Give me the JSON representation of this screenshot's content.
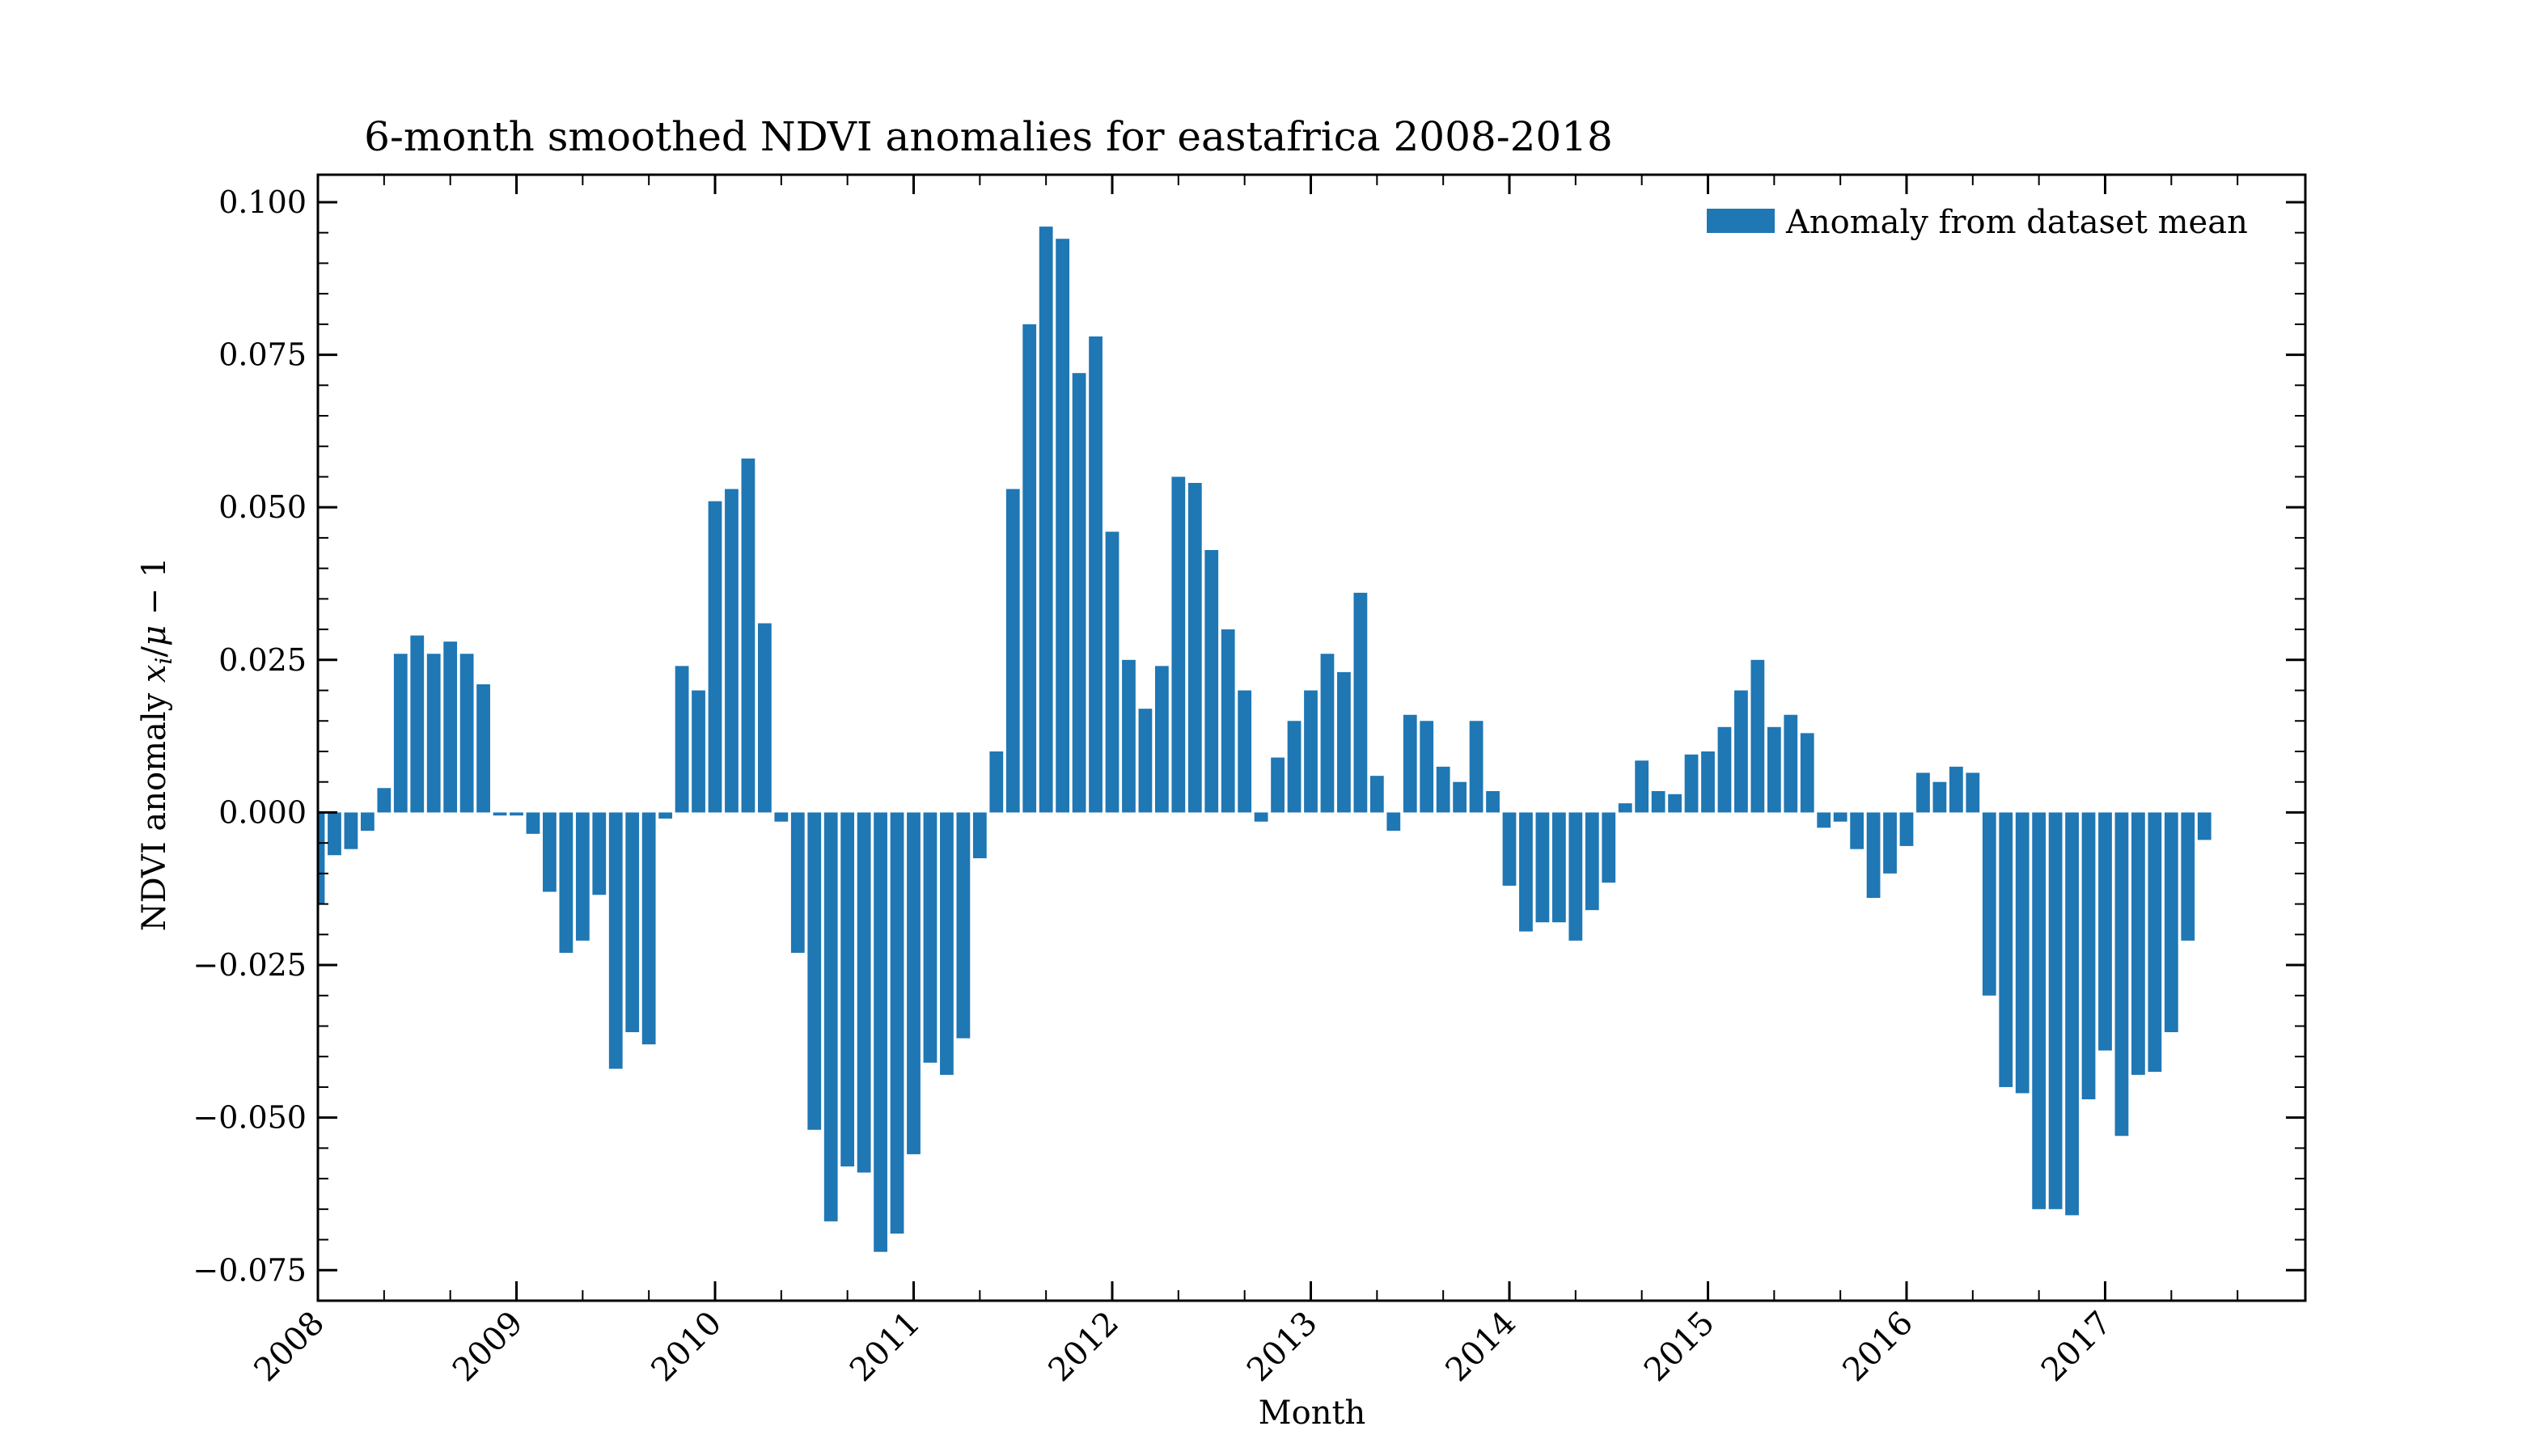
{
  "chart_data": {
    "type": "bar",
    "title": "6-month smoothed NDVI anomalies for eastafrica 2008-2018",
    "xlabel": "Month",
    "ylabel": "NDVI anomaly x_i/μ − 1",
    "ylim": [
      -0.08,
      0.1045
    ],
    "yticks": [
      -0.075,
      -0.05,
      -0.025,
      0.0,
      0.025,
      0.05,
      0.075,
      0.1
    ],
    "ytick_labels": [
      "−0.075",
      "−0.050",
      "−0.025",
      "0.000",
      "0.025",
      "0.050",
      "0.075",
      "0.100"
    ],
    "xticks": [
      "2008",
      "2009",
      "2010",
      "2011",
      "2012",
      "2013",
      "2014",
      "2015",
      "2016",
      "2017"
    ],
    "x_start": "2008-01",
    "x_end": "2018-01",
    "legend": "top-right",
    "grid": false,
    "series": [
      {
        "name": "Anomaly from dataset mean",
        "color": "#1f77b4",
        "x": [
          "2008-01",
          "2008-02",
          "2008-03",
          "2008-04",
          "2008-05",
          "2008-06",
          "2008-07",
          "2008-08",
          "2008-09",
          "2008-10",
          "2008-11",
          "2008-12",
          "2009-01",
          "2009-02",
          "2009-03",
          "2009-04",
          "2009-05",
          "2009-06",
          "2009-07",
          "2009-08",
          "2009-09",
          "2009-10",
          "2009-11",
          "2009-12",
          "2010-01",
          "2010-02",
          "2010-03",
          "2010-04",
          "2010-05",
          "2010-06",
          "2010-07",
          "2010-08",
          "2010-09",
          "2010-10",
          "2010-11",
          "2010-12",
          "2011-01",
          "2011-02",
          "2011-03",
          "2011-04",
          "2011-05",
          "2011-06",
          "2011-07",
          "2011-08",
          "2011-09",
          "2011-10",
          "2011-11",
          "2011-12",
          "2012-01",
          "2012-02",
          "2012-03",
          "2012-04",
          "2012-05",
          "2012-06",
          "2012-07",
          "2012-08",
          "2012-09",
          "2012-10",
          "2012-11",
          "2012-12",
          "2013-01",
          "2013-02",
          "2013-03",
          "2013-04",
          "2013-05",
          "2013-06",
          "2013-07",
          "2013-08",
          "2013-09",
          "2013-10",
          "2013-11",
          "2013-12",
          "2014-01",
          "2014-02",
          "2014-03",
          "2014-04",
          "2014-05",
          "2014-06",
          "2014-07",
          "2014-08",
          "2014-09",
          "2014-10",
          "2014-11",
          "2014-12",
          "2015-01",
          "2015-02",
          "2015-03",
          "2015-04",
          "2015-05",
          "2015-06",
          "2015-07",
          "2015-08",
          "2015-09",
          "2015-10",
          "2015-11",
          "2015-12",
          "2016-01",
          "2016-02",
          "2016-03",
          "2016-04",
          "2016-05",
          "2016-06",
          "2016-07",
          "2016-08",
          "2016-09",
          "2016-10",
          "2016-11",
          "2016-12",
          "2017-01",
          "2017-02",
          "2017-03",
          "2017-04",
          "2017-05",
          "2017-06",
          "2017-07"
        ],
        "values": [
          -0.015,
          -0.007,
          -0.006,
          -0.003,
          0.004,
          0.026,
          0.029,
          0.026,
          0.028,
          0.026,
          0.021,
          -0.0005,
          -0.0005,
          -0.0035,
          -0.013,
          -0.023,
          -0.021,
          -0.0135,
          -0.042,
          -0.036,
          -0.038,
          -0.001,
          0.024,
          0.02,
          0.051,
          0.053,
          0.058,
          0.031,
          -0.0015,
          -0.023,
          -0.052,
          -0.067,
          -0.058,
          -0.059,
          -0.072,
          -0.069,
          -0.056,
          -0.041,
          -0.043,
          -0.037,
          -0.0075,
          0.01,
          0.053,
          0.08,
          0.096,
          0.094,
          0.072,
          0.078,
          0.046,
          0.025,
          0.017,
          0.024,
          0.055,
          0.054,
          0.043,
          0.03,
          0.02,
          -0.0015,
          0.009,
          0.015,
          0.02,
          0.026,
          0.023,
          0.036,
          0.006,
          -0.003,
          0.016,
          0.015,
          0.0075,
          0.005,
          0.015,
          0.0035,
          -0.012,
          -0.0195,
          -0.018,
          -0.018,
          -0.021,
          -0.016,
          -0.0115,
          0.0015,
          0.0085,
          0.0035,
          0.003,
          0.0095,
          0.01,
          0.014,
          0.02,
          0.025,
          0.014,
          0.016,
          0.013,
          -0.0025,
          -0.0015,
          -0.006,
          -0.014,
          -0.01,
          -0.0055,
          0.0065,
          0.005,
          0.0075,
          0.0065,
          -0.03,
          -0.045,
          -0.046,
          -0.065,
          -0.065,
          -0.066,
          -0.047,
          -0.039,
          -0.053,
          -0.043,
          -0.0425,
          -0.036,
          -0.021,
          -0.0045
        ]
      }
    ]
  }
}
